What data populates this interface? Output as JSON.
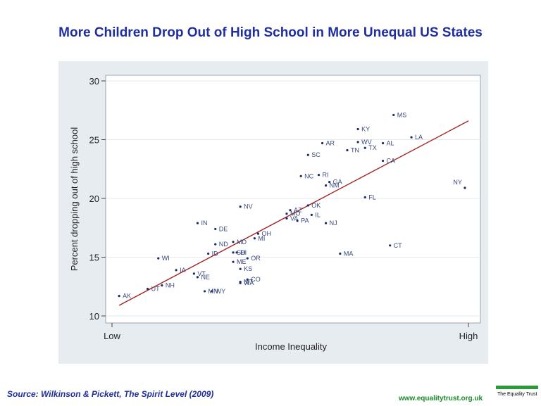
{
  "page": {
    "title": "More Children Drop Out of High School in More Unequal US States",
    "source": "Source: Wilkinson & Pickett, The Spirit Level (2009)",
    "website": "www.equalitytrust.org.uk",
    "logo_text": "The Equality Trust",
    "colors": {
      "title": "#1f2f9e",
      "panel": "#e7ecf1",
      "fit_line": "#a42424",
      "points": "#1a2a6c",
      "logo": "#2a9a3a"
    }
  },
  "chart_data": {
    "type": "scatter",
    "xlabel": "Income Inequality",
    "ylabel": "Percent dropping out of high school",
    "xlim": [
      0,
      100
    ],
    "ylim": [
      10,
      30
    ],
    "x_ticks": [
      {
        "x": 0,
        "label": "Low"
      },
      {
        "x": 100,
        "label": "High"
      }
    ],
    "y_ticks": [
      10,
      15,
      20,
      25,
      30
    ],
    "grid": "horizontal",
    "fit_line": {
      "x": [
        2,
        100
      ],
      "y": [
        10.9,
        26.6
      ]
    },
    "points": [
      {
        "label": "AK",
        "x": 2,
        "y": 11.7
      },
      {
        "label": "UT",
        "x": 10,
        "y": 12.3
      },
      {
        "label": "NH",
        "x": 14,
        "y": 12.6
      },
      {
        "label": "WI",
        "x": 13,
        "y": 14.9
      },
      {
        "label": "IA",
        "x": 18,
        "y": 13.9
      },
      {
        "label": "VT",
        "x": 23,
        "y": 13.6
      },
      {
        "label": "NE",
        "x": 24,
        "y": 13.3
      },
      {
        "label": "MN",
        "x": 26,
        "y": 12.1
      },
      {
        "label": "WY",
        "x": 28,
        "y": 12.1
      },
      {
        "label": "IN",
        "x": 24,
        "y": 17.9
      },
      {
        "label": "DE",
        "x": 29,
        "y": 17.4
      },
      {
        "label": "ID",
        "x": 27,
        "y": 15.3
      },
      {
        "label": "ND",
        "x": 29,
        "y": 16.1
      },
      {
        "label": "MD",
        "x": 34,
        "y": 16.3
      },
      {
        "label": "SD",
        "x": 34,
        "y": 15.4
      },
      {
        "label": "HI",
        "x": 35,
        "y": 15.4
      },
      {
        "label": "ME",
        "x": 34,
        "y": 14.6
      },
      {
        "label": "KS",
        "x": 36,
        "y": 14
      },
      {
        "label": "OR",
        "x": 38,
        "y": 14.9
      },
      {
        "label": "MT",
        "x": 36,
        "y": 12.9
      },
      {
        "label": "WA",
        "x": 36,
        "y": 12.8
      },
      {
        "label": "CO",
        "x": 38,
        "y": 13.1
      },
      {
        "label": "NV",
        "x": 36,
        "y": 19.3
      },
      {
        "label": "MI",
        "x": 40,
        "y": 16.6
      },
      {
        "label": "OH",
        "x": 41,
        "y": 17
      },
      {
        "label": "MO",
        "x": 49,
        "y": 18.7
      },
      {
        "label": "AZ",
        "x": 50,
        "y": 19
      },
      {
        "label": "VA",
        "x": 49,
        "y": 18.3
      },
      {
        "label": "PA",
        "x": 52,
        "y": 18.1
      },
      {
        "label": "OK",
        "x": 55,
        "y": 19.4
      },
      {
        "label": "IL",
        "x": 56,
        "y": 18.6
      },
      {
        "label": "NJ",
        "x": 60,
        "y": 17.9
      },
      {
        "label": "NC",
        "x": 53,
        "y": 21.9
      },
      {
        "label": "RI",
        "x": 58,
        "y": 22
      },
      {
        "label": "NM",
        "x": 60,
        "y": 21.1
      },
      {
        "label": "GA",
        "x": 61,
        "y": 21.4
      },
      {
        "label": "SC",
        "x": 55,
        "y": 23.7
      },
      {
        "label": "AR",
        "x": 59,
        "y": 24.7
      },
      {
        "label": "TN",
        "x": 66,
        "y": 24.1
      },
      {
        "label": "KY",
        "x": 69,
        "y": 25.9
      },
      {
        "label": "WV",
        "x": 69,
        "y": 24.8
      },
      {
        "label": "TX",
        "x": 71,
        "y": 24.3
      },
      {
        "label": "AL",
        "x": 76,
        "y": 24.7
      },
      {
        "label": "CA",
        "x": 76,
        "y": 23.2
      },
      {
        "label": "MS",
        "x": 79,
        "y": 27.1
      },
      {
        "label": "LA",
        "x": 84,
        "y": 25.2
      },
      {
        "label": "FL",
        "x": 71,
        "y": 20.1
      },
      {
        "label": "MA",
        "x": 64,
        "y": 15.3
      },
      {
        "label": "CT",
        "x": 78,
        "y": 16
      },
      {
        "label": "NY",
        "x": 99,
        "y": 20.9
      }
    ]
  }
}
